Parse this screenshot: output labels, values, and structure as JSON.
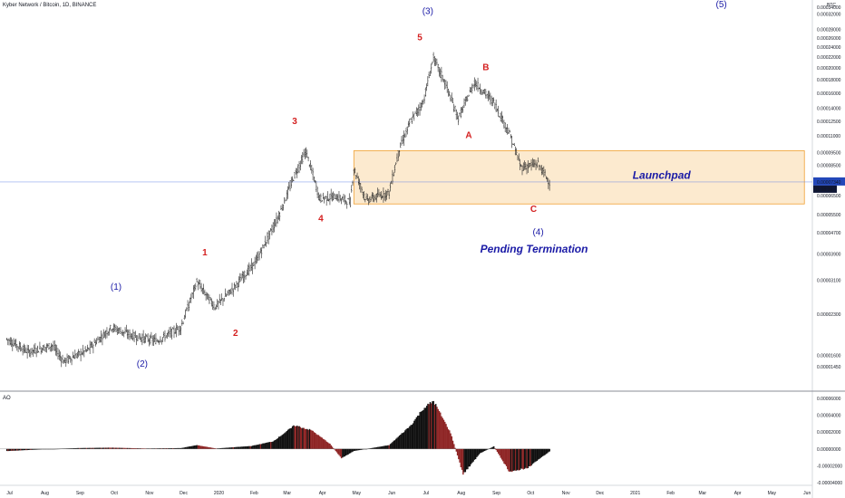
{
  "title": "Kyber Network / Bitcoin, 1D, BINANCE",
  "currency": "BTC",
  "ao_title": "AO",
  "price_tag": "0.00007340",
  "countdown": "11:18:39",
  "colors": {
    "candle": "#222222",
    "box_fill": "#fbe3bf",
    "box_stroke": "#f0a030",
    "wave_blue": "#1a1aa6",
    "wave_red": "#d42020",
    "ao_fill": "#111111",
    "ao_red": "#8e2424",
    "price_line": "#5b7ee5",
    "price_tag": "#2347b9"
  },
  "chart_data": {
    "type": "candlestick",
    "y_scale": "log",
    "price_axis_ticks": [
      "0.00034000",
      "0.00032000",
      "0.00028000",
      "0.00026000",
      "0.00024000",
      "0.00022000",
      "0.00020000",
      "0.00018000",
      "0.00016000",
      "0.00014000",
      "0.00012500",
      "0.00011000",
      "0.00009500",
      "0.00008500",
      "0.00006500",
      "0.00005500",
      "0.00004700",
      "0.00003900",
      "0.00003100",
      "0.00002300",
      "0.00001600",
      "0.00001450"
    ],
    "time_axis_ticks": [
      "Jul",
      "Aug",
      "Sep",
      "Oct",
      "Nov",
      "Dec",
      "2020",
      "Feb",
      "Mar",
      "Apr",
      "May",
      "Jun",
      "Jul",
      "Aug",
      "Sep",
      "Oct",
      "Nov",
      "Dec",
      "2021",
      "Feb",
      "Mar",
      "Apr",
      "May",
      "Jun"
    ],
    "ao_axis_ticks": [
      "0.00006000",
      "0.00004000",
      "0.00002000",
      "0.00000000",
      "-0.00002000",
      "-0.00004000"
    ],
    "price_path": [
      {
        "t": "2019-07-01",
        "p": 1.85e-05
      },
      {
        "t": "2019-07-20",
        "p": 1.65e-05
      },
      {
        "t": "2019-08-10",
        "p": 1.75e-05
      },
      {
        "t": "2019-08-20",
        "p": 1.52e-05
      },
      {
        "t": "2019-09-10",
        "p": 1.68e-05
      },
      {
        "t": "2019-10-01",
        "p": 2.05e-05
      },
      {
        "t": "2019-10-20",
        "p": 1.9e-05
      },
      {
        "t": "2019-11-10",
        "p": 1.82e-05
      },
      {
        "t": "2019-12-01",
        "p": 2.05e-05
      },
      {
        "t": "2019-12-15",
        "p": 3.05e-05
      },
      {
        "t": "2019-12-31",
        "p": 2.45e-05
      },
      {
        "t": "2020-01-15",
        "p": 2.85e-05
      },
      {
        "t": "2020-02-05",
        "p": 3.65e-05
      },
      {
        "t": "2020-02-25",
        "p": 5.45e-05
      },
      {
        "t": "2020-03-10",
        "p": 7.8e-05
      },
      {
        "t": "2020-03-20",
        "p": 9.6e-05
      },
      {
        "t": "2020-04-01",
        "p": 6.35e-05
      },
      {
        "t": "2020-04-15",
        "p": 6.45e-05
      },
      {
        "t": "2020-04-28",
        "p": 6.15e-05
      },
      {
        "t": "2020-05-01",
        "p": 8.25e-05
      },
      {
        "t": "2020-05-12",
        "p": 6.25e-05
      },
      {
        "t": "2020-06-01",
        "p": 6.7e-05
      },
      {
        "t": "2020-06-10",
        "p": 9.8e-05
      },
      {
        "t": "2020-06-20",
        "p": 0.000125
      },
      {
        "t": "2020-07-01",
        "p": 0.000148
      },
      {
        "t": "2020-07-10",
        "p": 0.000218
      },
      {
        "t": "2020-07-20",
        "p": 0.000176
      },
      {
        "t": "2020-08-01",
        "p": 0.000128
      },
      {
        "t": "2020-08-15",
        "p": 0.000176
      },
      {
        "t": "2020-09-01",
        "p": 0.000148
      },
      {
        "t": "2020-09-15",
        "p": 0.000112
      },
      {
        "t": "2020-09-25",
        "p": 8.35e-05
      },
      {
        "t": "2020-10-10",
        "p": 8.6e-05
      },
      {
        "t": "2020-10-20",
        "p": 7.34e-05
      }
    ],
    "ao_path": [
      {
        "t": "2019-07-01",
        "v": -2.5e-06
      },
      {
        "t": "2019-08-01",
        "v": -5e-07
      },
      {
        "t": "2019-09-01",
        "v": 1e-06
      },
      {
        "t": "2019-10-01",
        "v": 1.5e-06
      },
      {
        "t": "2019-11-01",
        "v": 5e-07
      },
      {
        "t": "2019-12-01",
        "v": 1e-06
      },
      {
        "t": "2019-12-15",
        "v": 4.5e-06
      },
      {
        "t": "2020-01-01",
        "v": 5e-07
      },
      {
        "t": "2020-02-01",
        "v": 3.5e-06
      },
      {
        "t": "2020-02-20",
        "v": 9e-06
      },
      {
        "t": "2020-03-10",
        "v": 2.8e-05
      },
      {
        "t": "2020-03-25",
        "v": 2.2e-05
      },
      {
        "t": "2020-04-10",
        "v": 6e-06
      },
      {
        "t": "2020-04-20",
        "v": -1.1e-05
      },
      {
        "t": "2020-05-01",
        "v": -2.5e-06
      },
      {
        "t": "2020-06-01",
        "v": 4.5e-06
      },
      {
        "t": "2020-06-20",
        "v": 2.8e-05
      },
      {
        "t": "2020-07-01",
        "v": 4.8e-05
      },
      {
        "t": "2020-07-10",
        "v": 5.7e-05
      },
      {
        "t": "2020-07-25",
        "v": 1.9e-05
      },
      {
        "t": "2020-08-05",
        "v": -3e-05
      },
      {
        "t": "2020-08-20",
        "v": -5e-06
      },
      {
        "t": "2020-09-01",
        "v": 3e-06
      },
      {
        "t": "2020-09-15",
        "v": -2.8e-05
      },
      {
        "t": "2020-10-01",
        "v": -2.2e-05
      },
      {
        "t": "2020-10-20",
        "v": -3e-06
      }
    ],
    "labels_blue": [
      "(1)",
      "(2)",
      "(3)",
      "(4)",
      "(5)"
    ],
    "labels_red": [
      "1",
      "2",
      "3",
      "4",
      "5",
      "A",
      "B",
      "C"
    ],
    "box_label": "Launchpad",
    "note": "Pending Termination",
    "box_range": {
      "t_start": "2020-05-01",
      "t_end": "2021-06-01",
      "p_low": 6.05e-05,
      "p_high": 9.65e-05
    }
  }
}
